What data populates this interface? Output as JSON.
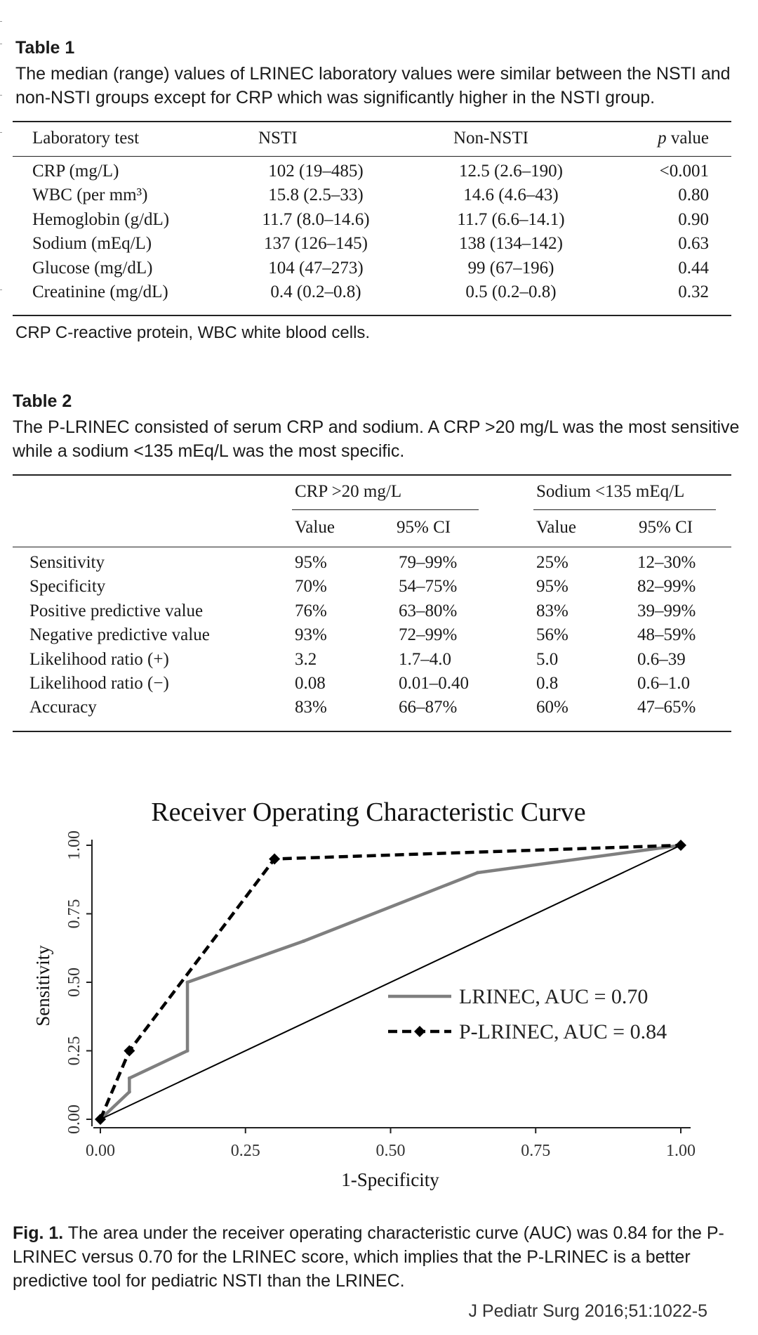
{
  "table1": {
    "label": "Table 1",
    "caption": "The median (range) values of LRINEC laboratory values were similar between the NSTI and non-NSTI groups except for CRP which was significantly higher in the NSTI group.",
    "headers": [
      "Laboratory test",
      "NSTI",
      "Non-NSTI",
      "p value"
    ],
    "rows": [
      [
        "CRP (mg/L)",
        "102 (19–485)",
        "12.5 (2.6–190)",
        "<0.001"
      ],
      [
        "WBC (per mm³)",
        "15.8 (2.5–33)",
        "14.6 (4.6–43)",
        "0.80"
      ],
      [
        "Hemoglobin (g/dL)",
        "11.7 (8.0–14.6)",
        "11.7 (6.6–14.1)",
        "0.90"
      ],
      [
        "Sodium (mEq/L)",
        "137 (126–145)",
        "138 (134–142)",
        "0.63"
      ],
      [
        "Glucose (mg/dL)",
        "104 (47–273)",
        "99 (67–196)",
        "0.44"
      ],
      [
        "Creatinine (mg/dL)",
        "0.4 (0.2–0.8)",
        "0.5 (0.2–0.8)",
        "0.32"
      ]
    ],
    "footnote": "CRP C-reactive protein, WBC white blood cells."
  },
  "table2": {
    "label": "Table 2",
    "caption": "The P-LRINEC consisted of serum CRP and sodium. A CRP >20 mg/L was the most sensitive while a sodium <135 mEq/L was the most specific.",
    "group_headers": [
      "CRP >20 mg/L",
      "Sodium <135 mEq/L"
    ],
    "sub_headers": [
      "Value",
      "95% CI",
      "Value",
      "95% CI"
    ],
    "rows": [
      [
        "Sensitivity",
        "95%",
        "79–99%",
        "25%",
        "12–30%"
      ],
      [
        "Specificity",
        "70%",
        "54–75%",
        "95%",
        "82–99%"
      ],
      [
        "Positive predictive value",
        "76%",
        "63–80%",
        "83%",
        "39–99%"
      ],
      [
        "Negative predictive value",
        "93%",
        "72–99%",
        "56%",
        "48–59%"
      ],
      [
        "Likelihood ratio (+)",
        "3.2",
        "1.7–4.0",
        "5.0",
        "0.6–39"
      ],
      [
        "Likelihood ratio (−)",
        "0.08",
        "0.01–0.40",
        "0.8",
        "0.6–1.0"
      ],
      [
        "Accuracy",
        "83%",
        "66–87%",
        "60%",
        "47–65%"
      ]
    ]
  },
  "chart_data": {
    "type": "line",
    "title": "Receiver Operating Characteristic Curve",
    "xlabel": "1-Specificity",
    "ylabel": "Sensitivity",
    "xlim": [
      0,
      1
    ],
    "ylim": [
      0,
      1
    ],
    "xticks": [
      "0.00",
      "0.25",
      "0.50",
      "0.75",
      "1.00"
    ],
    "yticks": [
      "0.00",
      "0.25",
      "0.50",
      "0.75",
      "1.00"
    ],
    "grid": false,
    "legend_position": "bottom-right",
    "series": [
      {
        "name": "LRINEC, AUC = 0.70",
        "style": "solid",
        "color": "#7f7f7f",
        "x": [
          0,
          0.05,
          0.05,
          0.15,
          0.15,
          0.35,
          0.65,
          1.0
        ],
        "y": [
          0,
          0.1,
          0.15,
          0.25,
          0.5,
          0.65,
          0.9,
          1.0
        ]
      },
      {
        "name": "P-LRINEC, AUC = 0.84",
        "style": "dashed",
        "color": "#000000",
        "markers": "diamond",
        "x": [
          0,
          0.05,
          0.3,
          1.0
        ],
        "y": [
          0,
          0.25,
          0.95,
          1.0
        ]
      },
      {
        "style": "reference",
        "color": "#000000",
        "x": [
          0,
          1
        ],
        "y": [
          0,
          1
        ]
      }
    ]
  },
  "figure": {
    "label": "Fig. 1.",
    "caption": " The area under the receiver operating characteristic curve (AUC) was 0.84 for the P-LRINEC versus 0.70 for the LRINEC score, which implies that the P-LRINEC is a better predictive tool for pediatric NSTI than the LRINEC."
  },
  "citation": "J Pediatr Surg 2016;51:1022-5"
}
